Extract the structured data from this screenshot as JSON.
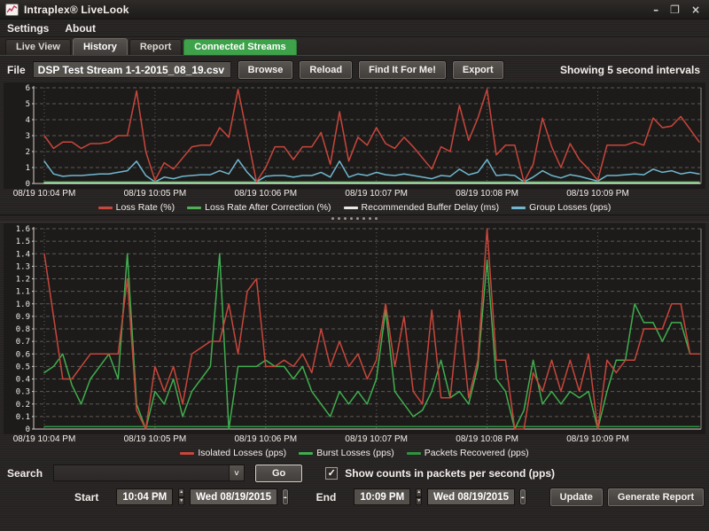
{
  "window": {
    "title": "Intraplex® LiveLook"
  },
  "icons": {
    "minimize": "–",
    "restore": "❐",
    "close": "×",
    "chevron_down": "˅",
    "spin_up": "▲",
    "spin_down": "▼",
    "check": "✓",
    "app_sparkline": "sparkline"
  },
  "menu": {
    "items": [
      {
        "label": "Settings"
      },
      {
        "label": "About"
      }
    ]
  },
  "tabs": [
    {
      "label": "Live View",
      "active": false
    },
    {
      "label": "History",
      "active": true
    },
    {
      "label": "Report",
      "active": false
    },
    {
      "label": "Connected Streams",
      "active": false,
      "highlight_color": "#3da24a"
    }
  ],
  "file_bar": {
    "label": "File",
    "filename": "DSP Test Stream 1-1-2015_08_19.csv",
    "buttons": [
      "Browse",
      "Reload",
      "Find It For Me!",
      "Export"
    ],
    "interval_note": "Showing 5 second intervals"
  },
  "search_bar": {
    "label": "Search",
    "value": "",
    "go_label": "Go",
    "checkbox_checked": true,
    "checkbox_label": "Show counts in packets per second (pps)"
  },
  "range_bar": {
    "start_label": "Start",
    "start_time": "10:04 PM",
    "start_date": "Wed 08/19/2015",
    "end_label": "End",
    "end_time": "10:09 PM",
    "end_date": "Wed 08/19/2015",
    "minus_label": "-",
    "update_label": "Update",
    "generate_label": "Generate Report"
  },
  "chart_data": [
    {
      "type": "line",
      "title": "",
      "x_labels": [
        "08/19 10:04 PM",
        "08/19 10:05 PM",
        "08/19 10:06 PM",
        "08/19 10:07 PM",
        "08/19 10:08 PM",
        "08/19 10:09 PM"
      ],
      "points_per_minute": 12,
      "interval_seconds": 5,
      "ylim": [
        0,
        6
      ],
      "ytick_step": 1,
      "grid": true,
      "legend_position": "bottom",
      "series": [
        {
          "name": "Loss Rate (%)",
          "color": "#c8463c",
          "values": [
            3.0,
            2.2,
            2.6,
            2.6,
            2.2,
            2.5,
            2.5,
            2.6,
            3.0,
            3.0,
            5.8,
            2.0,
            0.2,
            1.3,
            0.9,
            1.6,
            2.3,
            2.4,
            2.4,
            3.5,
            2.9,
            5.9,
            3.0,
            0.1,
            1.0,
            2.3,
            2.3,
            1.5,
            2.3,
            2.3,
            3.2,
            1.2,
            4.5,
            1.4,
            2.9,
            2.4,
            3.5,
            2.5,
            2.2,
            2.9,
            2.3,
            1.6,
            0.9,
            2.3,
            2.0,
            4.9,
            2.7,
            4.1,
            5.9,
            1.8,
            2.4,
            2.4,
            0.1,
            1.2,
            4.1,
            2.3,
            1.0,
            2.5,
            1.5,
            0.9,
            0.2,
            2.4,
            2.4,
            2.4,
            2.6,
            2.4,
            4.1,
            3.5,
            3.6,
            4.2,
            3.4,
            2.6
          ]
        },
        {
          "name": "Loss Rate After Correction (%)",
          "color": "#4faf53",
          "constant": 0.1
        },
        {
          "name": "Recommended Buffer Delay (ms)",
          "color": "#e8e8e8",
          "constant": 0.03
        },
        {
          "name": "Group Losses (pps)",
          "color": "#6fb7d0",
          "values": [
            1.4,
            0.6,
            0.45,
            0.5,
            0.5,
            0.55,
            0.6,
            0.6,
            0.7,
            0.8,
            1.4,
            0.5,
            0.1,
            0.4,
            0.3,
            0.45,
            0.5,
            0.55,
            0.55,
            0.8,
            0.6,
            1.5,
            0.7,
            0.1,
            0.45,
            0.5,
            0.5,
            0.4,
            0.5,
            0.5,
            0.7,
            0.4,
            1.4,
            0.4,
            0.6,
            0.5,
            0.7,
            0.55,
            0.5,
            0.6,
            0.5,
            0.4,
            0.3,
            0.5,
            0.45,
            0.9,
            0.55,
            0.7,
            1.5,
            0.5,
            0.55,
            0.5,
            0.1,
            0.4,
            0.8,
            0.5,
            0.35,
            0.55,
            0.45,
            0.3,
            0.15,
            0.5,
            0.5,
            0.55,
            0.6,
            0.55,
            0.9,
            0.7,
            0.8,
            0.6,
            0.7,
            0.6
          ]
        }
      ]
    },
    {
      "type": "line",
      "title": "",
      "x_labels": [
        "08/19 10:04 PM",
        "08/19 10:05 PM",
        "08/19 10:06 PM",
        "08/19 10:07 PM",
        "08/19 10:08 PM",
        "08/19 10:09 PM"
      ],
      "points_per_minute": 12,
      "interval_seconds": 5,
      "ylim": [
        0,
        1.6
      ],
      "ytick_step": 0.1,
      "grid": true,
      "legend_position": "bottom",
      "series": [
        {
          "name": "Isolated Losses (pps)",
          "color": "#c8463c",
          "values": [
            1.4,
            0.9,
            0.4,
            0.4,
            0.5,
            0.6,
            0.6,
            0.6,
            0.6,
            1.2,
            0.15,
            0.0,
            0.5,
            0.3,
            0.5,
            0.2,
            0.6,
            0.65,
            0.7,
            0.7,
            1.0,
            0.6,
            1.1,
            1.2,
            0.5,
            0.5,
            0.55,
            0.5,
            0.6,
            0.45,
            0.8,
            0.5,
            0.7,
            0.5,
            0.6,
            0.4,
            0.55,
            1.0,
            0.5,
            0.9,
            0.3,
            0.2,
            0.95,
            0.25,
            0.25,
            0.95,
            0.25,
            0.55,
            1.6,
            0.55,
            0.55,
            0.0,
            0.0,
            0.45,
            0.3,
            0.55,
            0.3,
            0.55,
            0.3,
            0.6,
            0.0,
            0.55,
            0.45,
            0.55,
            0.55,
            0.8,
            0.8,
            0.8,
            1.0,
            1.0,
            0.6,
            0.6
          ]
        },
        {
          "name": "Burst Losses (pps)",
          "color": "#3fae4f",
          "values": [
            0.45,
            0.5,
            0.6,
            0.35,
            0.2,
            0.4,
            0.5,
            0.6,
            0.4,
            1.4,
            0.2,
            0.0,
            0.3,
            0.2,
            0.4,
            0.1,
            0.3,
            0.4,
            0.5,
            1.4,
            0.0,
            0.5,
            0.5,
            0.5,
            0.55,
            0.5,
            0.5,
            0.4,
            0.5,
            0.3,
            0.2,
            0.1,
            0.3,
            0.2,
            0.3,
            0.2,
            0.4,
            0.95,
            0.3,
            0.2,
            0.1,
            0.15,
            0.3,
            0.55,
            0.25,
            0.3,
            0.2,
            0.5,
            1.35,
            0.4,
            0.3,
            0.0,
            0.15,
            0.55,
            0.2,
            0.3,
            0.2,
            0.3,
            0.25,
            0.3,
            0.0,
            0.3,
            0.55,
            0.55,
            1.0,
            0.85,
            0.85,
            0.7,
            0.85,
            0.85,
            0.6,
            0.6
          ]
        },
        {
          "name": "Packets Recovered (pps)",
          "color": "#2f9440",
          "constant": 0.02
        }
      ]
    }
  ]
}
